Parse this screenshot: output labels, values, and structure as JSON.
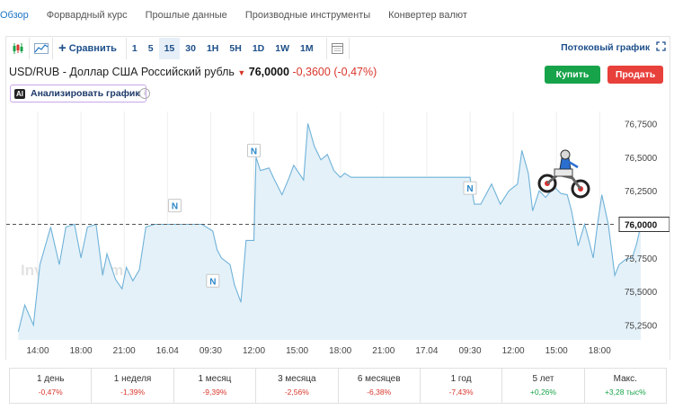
{
  "nav": {
    "items": [
      "Обзор",
      "Форвардный курс",
      "Прошлые данные",
      "Производные инструменты",
      "Конвертер валют"
    ],
    "active_index": 0
  },
  "toolbar": {
    "compare_label": "Сравнить",
    "timeframes": [
      "1",
      "5",
      "15",
      "30",
      "1H",
      "5H",
      "1D",
      "1W",
      "1M"
    ],
    "active_timeframe": "15",
    "stream_label": "Потоковый график"
  },
  "header": {
    "title": "USD/RUB - Доллар США Российский рубль",
    "price": "76,0000",
    "change": "-0,3600",
    "change_pct": "(-0,47%)",
    "buy_label": "Купить",
    "sell_label": "Продать",
    "ai_badge": "AI",
    "analyze_label": "Анализировать график",
    "watermark": "Investing.com"
  },
  "colors": {
    "line": "#6fb2d8",
    "area": "#e4f1f9",
    "negative": "#d9362b",
    "positive": "#17a34a",
    "link": "#1d74c5"
  },
  "chart_data": {
    "type": "area",
    "y_ticks": [
      "76,7500",
      "76,5000",
      "76,2500",
      "76,0000",
      "75,7500",
      "75,5000",
      "75,2500"
    ],
    "current_price_label": "76,0000",
    "current_price": 76.0,
    "ylim": [
      75.14,
      76.84
    ],
    "x_ticks": [
      "14:00",
      "18:00",
      "21:00",
      "16.04",
      "09:30",
      "12:00",
      "15:00",
      "18:00",
      "21:00",
      "17.04",
      "09:30",
      "12:00",
      "15:00",
      "18:00"
    ],
    "markers": [
      {
        "label": "N",
        "x_index": 4.05,
        "value": 75.58
      },
      {
        "label": "N",
        "x_index": 3.17,
        "value": 76.14
      },
      {
        "label": "N",
        "x_index": 5.0,
        "value": 76.55
      },
      {
        "label": "N",
        "x_index": 10.0,
        "value": 76.27
      }
    ],
    "series": [
      {
        "values": [
          [
            -0.45,
            75.2
          ],
          [
            -0.3,
            75.4
          ],
          [
            -0.1,
            75.25
          ],
          [
            0.05,
            75.7
          ],
          [
            0.3,
            75.98
          ],
          [
            0.5,
            75.7
          ],
          [
            0.65,
            75.98
          ],
          [
            0.85,
            76.0
          ],
          [
            1.0,
            75.75
          ],
          [
            1.15,
            75.98
          ],
          [
            1.35,
            76.0
          ],
          [
            1.5,
            75.62
          ],
          [
            1.6,
            75.78
          ],
          [
            1.8,
            75.59
          ],
          [
            1.95,
            75.52
          ],
          [
            2.05,
            75.68
          ],
          [
            2.2,
            75.58
          ],
          [
            2.35,
            75.66
          ],
          [
            2.5,
            75.98
          ],
          [
            2.7,
            76.0
          ],
          [
            2.95,
            76.0
          ],
          [
            3.3,
            76.0
          ],
          [
            3.55,
            76.0
          ],
          [
            3.8,
            76.0
          ],
          [
            4.05,
            75.95
          ],
          [
            4.15,
            75.81
          ],
          [
            4.25,
            75.75
          ],
          [
            4.45,
            75.7
          ],
          [
            4.55,
            75.55
          ],
          [
            4.7,
            75.42
          ],
          [
            4.82,
            75.88
          ],
          [
            5.0,
            75.88
          ],
          [
            5.05,
            76.5
          ],
          [
            5.15,
            76.4
          ],
          [
            5.35,
            76.42
          ],
          [
            5.45,
            76.35
          ],
          [
            5.65,
            76.22
          ],
          [
            5.82,
            76.35
          ],
          [
            5.92,
            76.44
          ],
          [
            6.15,
            76.33
          ],
          [
            6.25,
            76.75
          ],
          [
            6.4,
            76.58
          ],
          [
            6.55,
            76.48
          ],
          [
            6.7,
            76.52
          ],
          [
            6.85,
            76.4
          ],
          [
            7.0,
            76.35
          ],
          [
            7.1,
            76.38
          ],
          [
            7.25,
            76.35
          ],
          [
            7.5,
            76.35
          ],
          [
            8.0,
            76.35
          ],
          [
            8.5,
            76.35
          ],
          [
            9.0,
            76.35
          ],
          [
            9.5,
            76.35
          ],
          [
            9.85,
            76.35
          ],
          [
            10.0,
            76.35
          ],
          [
            10.1,
            76.15
          ],
          [
            10.25,
            76.15
          ],
          [
            10.5,
            76.3
          ],
          [
            10.7,
            76.15
          ],
          [
            10.9,
            76.25
          ],
          [
            11.1,
            76.3
          ],
          [
            11.2,
            76.55
          ],
          [
            11.35,
            76.38
          ],
          [
            11.45,
            76.1
          ],
          [
            11.6,
            76.25
          ],
          [
            11.75,
            76.2
          ],
          [
            11.95,
            76.28
          ],
          [
            12.1,
            76.23
          ],
          [
            12.25,
            76.22
          ],
          [
            12.35,
            76.1
          ],
          [
            12.5,
            75.84
          ],
          [
            12.65,
            76.0
          ],
          [
            12.75,
            75.88
          ],
          [
            12.85,
            75.75
          ],
          [
            12.95,
            76.0
          ],
          [
            13.05,
            76.22
          ],
          [
            13.2,
            76.0
          ],
          [
            13.35,
            75.62
          ],
          [
            13.45,
            75.7
          ],
          [
            13.6,
            75.74
          ],
          [
            13.75,
            75.75
          ],
          [
            13.85,
            75.85
          ],
          [
            13.95,
            75.99
          ]
        ]
      }
    ]
  },
  "periods": [
    {
      "label": "1 день",
      "value": "-0,47%",
      "dir": "neg"
    },
    {
      "label": "1 неделя",
      "value": "-1,39%",
      "dir": "neg"
    },
    {
      "label": "1 месяц",
      "value": "-9,39%",
      "dir": "neg"
    },
    {
      "label": "3 месяца",
      "value": "-2,56%",
      "dir": "neg"
    },
    {
      "label": "6 месяцев",
      "value": "-6,38%",
      "dir": "neg"
    },
    {
      "label": "1 год",
      "value": "-7,43%",
      "dir": "neg"
    },
    {
      "label": "5 лет",
      "value": "+0,26%",
      "dir": "pos"
    },
    {
      "label": "Макс.",
      "value": "+3,28 тыс%",
      "dir": "pos"
    }
  ]
}
